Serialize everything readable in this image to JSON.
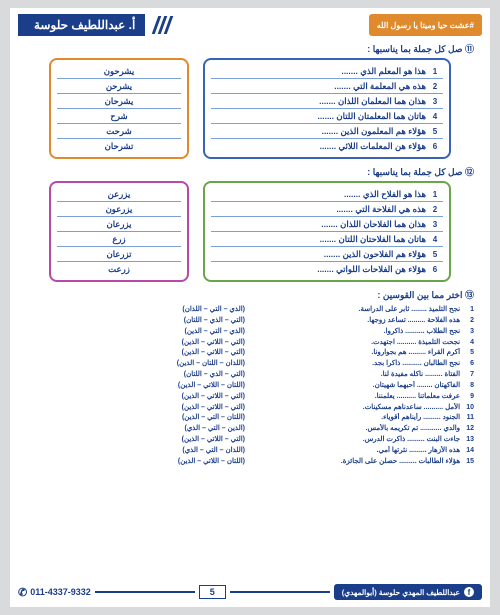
{
  "header": {
    "orange_text": "#عشت حيا وميتا يا رسول الله",
    "blue_text": "أ. عبداللطيف حلوسة"
  },
  "q11": {
    "title": "⑪ صل كل جملة بما يناسبها :",
    "border_right": "#3a62b5",
    "border_left": "#e08a2e",
    "right_rows": [
      "هذا هو المعلم الذي .......",
      "هذه هي المعلمة التي .......",
      "هذان هما المعلمان اللذان .......",
      "هاتان هما المعلمتان اللتان .......",
      "هؤلاء هم المعلمون الذين .......",
      "هؤلاء هن المعلمات اللائي ......."
    ],
    "left_rows": [
      "يشرحون",
      "يشرحن",
      "يشرحان",
      "شرح",
      "شرحت",
      "تشرحان"
    ]
  },
  "q12": {
    "title": "⑫ صل كل جملة بما يناسبها :",
    "border_right": "#6aa54a",
    "border_left": "#b74aa8",
    "right_rows": [
      "هذا هو الفلاح الذي .......",
      "هذه هي الفلاحة التي .......",
      "هذان هما الفلاحان اللذان .......",
      "هاتان هما الفلاحتان اللتان .......",
      "هؤلاء هم الفلاحون الذين .......",
      "هؤلاء هن الفلاحات اللواتي ......."
    ],
    "left_rows": [
      "يزرعن",
      "يزرعون",
      "يزرعان",
      "زرع",
      "تزرعان",
      "زرعت"
    ]
  },
  "q13": {
    "title": "⑬ اختر مما بين القوسين :",
    "right_lines": [
      "نجح التلميذ ........ ثابر على الدراسة.",
      "هذه الفلاحة ......... تساعد زوجها.",
      "نجح الطلاب .......... ذاكروا.",
      "نجحت التلميذة .......... اجتهدت.",
      "أكرم القراء ......... هم بجوارونا.",
      "نجح الطالبان .......... ذاكرا بجد.",
      "الفتاة ......... ناكله مفيدة لنا.",
      "الفاكهتان ........ أحبهما شهيتان.",
      "عرفت معلماتنا .......... يعلمننا.",
      "الأمل .......... ساعدناهم مسكينات.",
      "الجنود ......... رأيناهم أقوياء.",
      "والدي ........... تم تكريمه بالأمس.",
      "جاءت البنت ......... ذاكرت الدرس.",
      "هذه الأزهار ......... نثرتها أمي.",
      "هؤلاء الطالبات ......... حصلن على الجائزة."
    ],
    "left_lines": [
      "(الذي – التي – اللذان)",
      "(التي – الذي – اللتان)",
      "(الذي – التي – الذين)",
      "(التي – اللاتي – الذين)",
      "(التي – اللاتي – الذين)",
      "(اللذان – اللتان – الذين)",
      "(التي – الذي – اللتان)",
      "(اللتان – اللاتي – الذين)",
      "(التي – اللاتي – الذين)",
      "(التي – اللاتي – الذين)",
      "(اللتان – التي – الذين)",
      "(الذين – التي – الذي)",
      "(التي – اللاتي – الذين)",
      "(اللذان – التي – الذي)",
      "(اللتان – اللاتي – الذين)"
    ]
  },
  "footer": {
    "fb_text": "عبداللطيف المهدي حلوسة (أبوالمهدي)",
    "page_num": "5",
    "phone": "011-4337-9332"
  }
}
